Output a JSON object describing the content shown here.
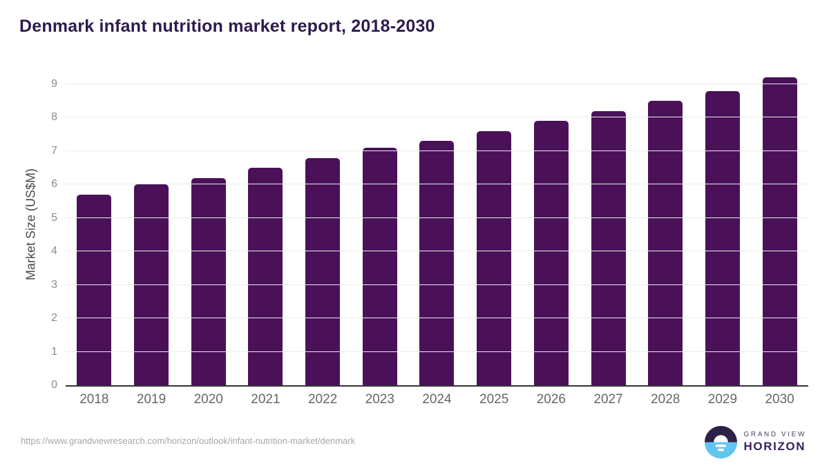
{
  "header": {
    "title": "Denmark infant nutrition market report, 2018-2030"
  },
  "chart_data": {
    "type": "bar",
    "title": "Denmark infant nutrition market report, 2018-2030",
    "categories": [
      "2018",
      "2019",
      "2020",
      "2021",
      "2022",
      "2023",
      "2024",
      "2025",
      "2026",
      "2027",
      "2028",
      "2029",
      "2030"
    ],
    "values": [
      5.7,
      6.0,
      6.2,
      6.5,
      6.8,
      7.1,
      7.3,
      7.6,
      7.9,
      8.2,
      8.5,
      8.8,
      9.2
    ],
    "xlabel": "",
    "ylabel": "Market Size (US$M)",
    "ylim": [
      0,
      9.6
    ],
    "yticks": [
      0,
      1,
      2,
      3,
      4,
      5,
      6,
      7,
      8,
      9
    ],
    "grid": true,
    "legend_position": "none",
    "bar_color": "#4a1159"
  },
  "footer": {
    "source_url": "https://www.grandviewresearch.com/horizon/outlook/infant-nutrition-market/denmark",
    "logo": {
      "line1": "GRAND VIEW",
      "line2": "HORIZON"
    }
  },
  "colors": {
    "bar": "#4a1159",
    "title_text": "#2e1a4e",
    "axis_line": "#333333",
    "gridline": "#ececec",
    "ytick_text": "#8a8a8a",
    "xtick_text": "#666666",
    "axis_label_text": "#4a4a4a",
    "url_text": "#a6a6a6",
    "logo_dark": "#2e2147",
    "logo_blue": "#62c4f0"
  }
}
